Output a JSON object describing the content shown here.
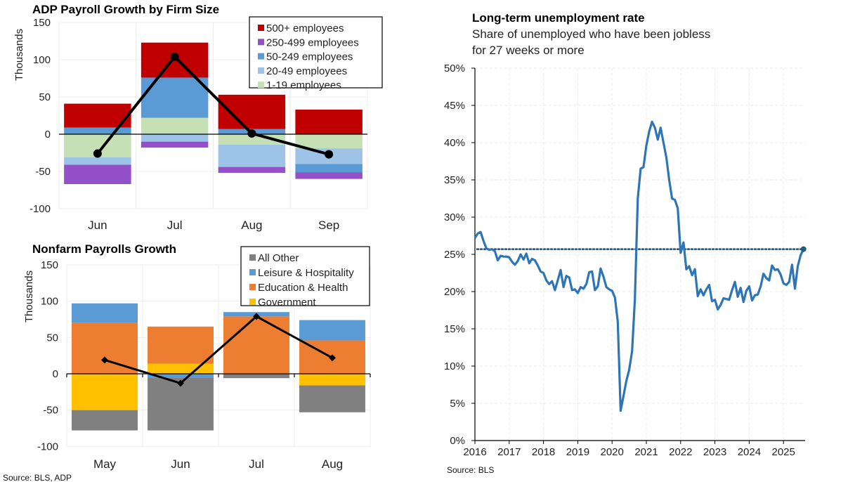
{
  "charts": {
    "adp": {
      "title": "ADP Payroll Growth by Firm Size",
      "ylabel": "Thousands"
    },
    "nfp": {
      "title": "Nonfarm Payrolls Growth",
      "ylabel": "Thousands"
    },
    "ltu": {
      "title": "Long-term unemployment rate",
      "subtitle_line1": "Share of unemployed who have been jobless",
      "subtitle_line2": "for 27 weeks or more"
    }
  },
  "sources": {
    "left": "Source: BLS, ADP",
    "right": "Source: BLS"
  },
  "chart_data": [
    {
      "id": "adp",
      "type": "bar",
      "stacked": true,
      "title": "ADP Payroll Growth by Firm Size",
      "xlabel": "",
      "ylabel": "Thousands",
      "ylim": [
        -100,
        150
      ],
      "yticks": [
        150,
        100,
        50,
        0,
        -50,
        -100
      ],
      "grid": true,
      "legend_position": "top-right",
      "categories": [
        "Jun",
        "Jul",
        "Aug",
        "Sep"
      ],
      "series": [
        {
          "name": "500+ employees",
          "color": "#c00000",
          "values": [
            32,
            47,
            46,
            33
          ]
        },
        {
          "name": "250-499 employees",
          "color": "#9450c8",
          "values": [
            -26,
            -8,
            -8,
            -9
          ]
        },
        {
          "name": "50-249 employees",
          "color": "#5b9bd5",
          "values": [
            9,
            54,
            7,
            -11
          ]
        },
        {
          "name": "20-49 employees",
          "color": "#9dc3e6",
          "values": [
            -10,
            -10,
            -30,
            -21
          ]
        },
        {
          "name": "1-19 employees",
          "color": "#c5e0b4",
          "values": [
            -31,
            22,
            -14,
            -19
          ]
        }
      ],
      "stack_order": [
        "1-19 employees",
        "20-49 employees",
        "50-249 employees",
        "250-499 employees",
        "500+ employees"
      ],
      "total_line": {
        "name": "Total",
        "color": "#000000",
        "values": [
          -26,
          104,
          1,
          -27
        ]
      }
    },
    {
      "id": "nfp",
      "type": "bar",
      "stacked": true,
      "title": "Nonfarm Payrolls Growth",
      "xlabel": "",
      "ylabel": "Thousands",
      "ylim": [
        -100,
        150
      ],
      "yticks": [
        150,
        100,
        50,
        0,
        -50,
        -100
      ],
      "grid": true,
      "legend_position": "top-right",
      "categories": [
        "May",
        "Jun",
        "Jul",
        "Aug"
      ],
      "series": [
        {
          "name": "All Other",
          "color": "#808080",
          "values": [
            -28,
            -73,
            -6,
            -37
          ]
        },
        {
          "name": "Leisure & Hospitality",
          "color": "#5b9bd5",
          "values": [
            27,
            -5,
            6,
            28
          ]
        },
        {
          "name": "Education & Health",
          "color": "#ed7d31",
          "values": [
            70,
            51,
            78,
            46
          ]
        },
        {
          "name": "Government",
          "color": "#ffc000",
          "values": [
            -50,
            14,
            1,
            -16
          ]
        }
      ],
      "stack_order": [
        "Government",
        "Education & Health",
        "Leisure & Hospitality",
        "All Other"
      ],
      "total_line": {
        "name": "Total",
        "color": "#000000",
        "values": [
          19,
          -13,
          79,
          22
        ]
      }
    },
    {
      "id": "ltu",
      "type": "line",
      "title": "Long-term unemployment rate",
      "subtitle": "Share of unemployed who have been jobless for 27 weeks or more",
      "xlabel": "",
      "ylabel": "",
      "ylim": [
        0,
        50
      ],
      "yticks": [
        "0%",
        "5%",
        "10%",
        "15%",
        "20%",
        "25%",
        "30%",
        "35%",
        "40%",
        "45%",
        "50%"
      ],
      "xticks": [
        "2016",
        "2017",
        "2018",
        "2019",
        "2020",
        "2021",
        "2022",
        "2023",
        "2024",
        "2025"
      ],
      "xlim": [
        "2016-01",
        "2025-08"
      ],
      "grid": true,
      "color": "#2e75b6",
      "reference_line": {
        "value": 25.7,
        "style": "dotted",
        "color": "#1f4e79"
      },
      "last_point_marker": true,
      "start": "2016-01",
      "frequency": "monthly",
      "values": [
        27.2,
        27.8,
        28.0,
        26.8,
        25.8,
        25.6,
        25.7,
        25.4,
        24.2,
        24.8,
        24.7,
        24.7,
        24.6,
        24.0,
        23.6,
        24.1,
        25.0,
        24.3,
        25.1,
        23.8,
        24.4,
        24.2,
        23.5,
        22.7,
        22.5,
        21.5,
        21.0,
        21.4,
        20.2,
        21.5,
        22.9,
        20.6,
        22.1,
        21.9,
        20.2,
        20.3,
        19.8,
        20.6,
        20.4,
        21.0,
        22.6,
        22.7,
        20.2,
        20.7,
        23.1,
        22.0,
        20.6,
        20.3,
        20.1,
        19.2,
        16.0,
        4.0,
        6.0,
        8.0,
        9.5,
        12.0,
        19.0,
        32.5,
        36.5,
        36.7,
        39.6,
        41.5,
        42.8,
        42.0,
        40.4,
        42.0,
        40.0,
        38.0,
        35.0,
        32.5,
        32.3,
        31.2,
        25.2,
        26.6,
        23.0,
        23.4,
        22.2,
        23.0,
        19.4,
        20.3,
        19.5,
        20.3,
        20.9,
        18.7,
        18.9,
        17.6,
        18.2,
        19.1,
        19.0,
        18.9,
        20.2,
        21.3,
        19.3,
        20.5,
        18.6,
        20.1,
        20.7,
        18.8,
        19.5,
        19.6,
        20.7,
        22.4,
        21.8,
        21.5,
        23.5,
        22.9,
        23.0,
        22.3,
        21.1,
        20.9,
        21.3,
        23.6,
        20.4,
        23.4,
        24.9,
        25.7
      ]
    }
  ]
}
